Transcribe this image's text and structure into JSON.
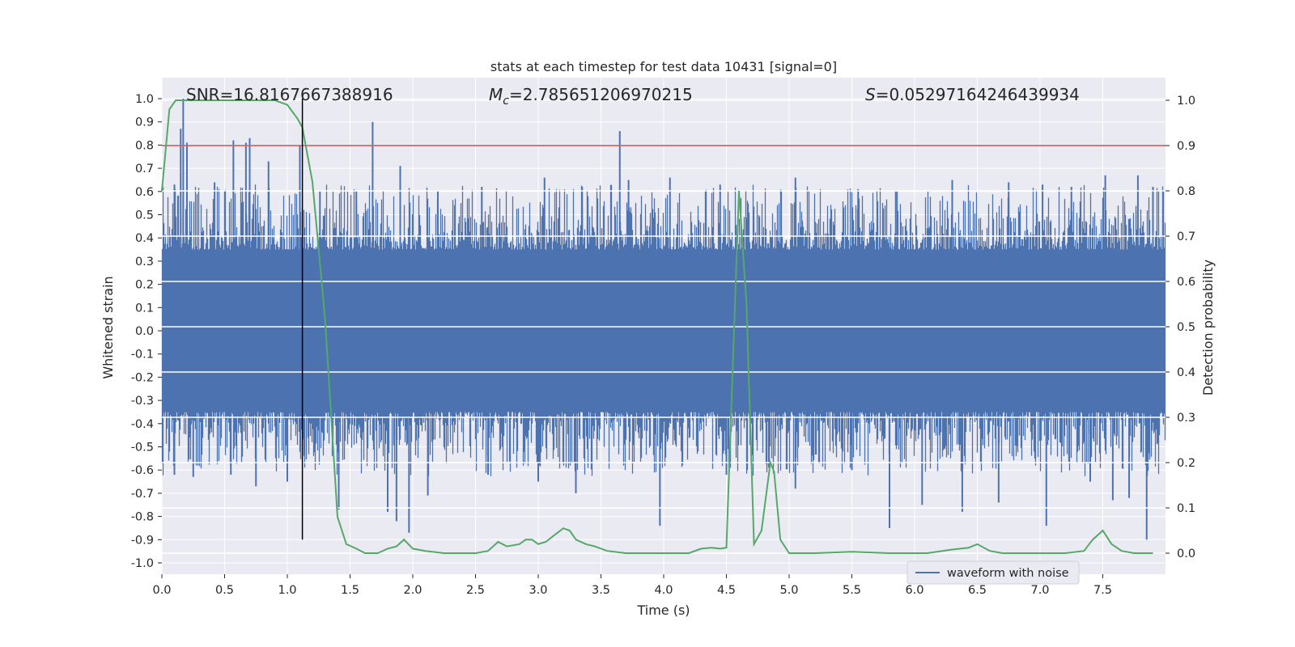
{
  "chart_data": {
    "type": "line",
    "title": "stats at each timestep for test data 10431 [signal=0]",
    "xlabel": "Time (s)",
    "ylabel_left": "Whitened strain",
    "ylabel_right": "Detection probability",
    "xlim": [
      0,
      8
    ],
    "ylim_left": [
      -1.0,
      1.0
    ],
    "ylim_right": [
      -0.05,
      1.05
    ],
    "x_ticks": [
      "0.0",
      "0.5",
      "1.0",
      "1.5",
      "2.0",
      "2.5",
      "3.0",
      "3.5",
      "4.0",
      "4.5",
      "5.0",
      "5.5",
      "6.0",
      "6.5",
      "7.0",
      "7.5"
    ],
    "x_tick_values": [
      0,
      0.5,
      1,
      1.5,
      2,
      2.5,
      3,
      3.5,
      4,
      4.5,
      5,
      5.5,
      6,
      6.5,
      7,
      7.5
    ],
    "y_ticks_left": [
      "-1.0",
      "-0.9",
      "-0.8",
      "-0.7",
      "-0.6",
      "-0.5",
      "-0.4",
      "-0.3",
      "-0.2",
      "-0.1",
      "0.0",
      "0.1",
      "0.2",
      "0.3",
      "0.4",
      "0.5",
      "0.6",
      "0.7",
      "0.8",
      "0.9",
      "1.0"
    ],
    "y_tick_values_left": [
      -1.0,
      -0.9,
      -0.8,
      -0.7,
      -0.6,
      -0.5,
      -0.4,
      -0.3,
      -0.2,
      -0.1,
      0.0,
      0.1,
      0.2,
      0.3,
      0.4,
      0.5,
      0.6,
      0.7,
      0.8,
      0.9,
      1.0
    ],
    "y_ticks_right": [
      "0.0",
      "0.1",
      "0.2",
      "0.3",
      "0.4",
      "0.5",
      "0.6",
      "0.7",
      "0.8",
      "0.9",
      "1.0"
    ],
    "y_tick_values_right": [
      0.0,
      0.1,
      0.2,
      0.3,
      0.4,
      0.5,
      0.6,
      0.7,
      0.8,
      0.9,
      1.0
    ],
    "grid": true,
    "annotations": {
      "snr": "SNR=16.8167667388916",
      "mc_symbol": "M",
      "mc_sub": "c",
      "mc_value": "=2.785651206970215",
      "s_symbol": "S",
      "s_value": "=0.05297164246439934"
    },
    "threshold": {
      "value": 0.9,
      "axis": "right",
      "color": "#c44e52"
    },
    "vertical_marker": {
      "x": 1.12,
      "color": "#000000"
    },
    "legend": {
      "placement": "lower-right",
      "entries": [
        "waveform with noise"
      ]
    },
    "series": [
      {
        "name": "waveform with noise",
        "axis": "left",
        "color": "#4c72b0",
        "note_shape": "dense noise envelope",
        "envelope_abs": 0.35,
        "spikes": [
          {
            "x": 0.17,
            "y": 1.0
          },
          {
            "x": 0.15,
            "y": 0.87
          },
          {
            "x": 0.1,
            "y": 0.63
          },
          {
            "x": 0.2,
            "y": 0.81
          },
          {
            "x": 0.42,
            "y": 0.64
          },
          {
            "x": 0.57,
            "y": 0.82
          },
          {
            "x": 0.7,
            "y": 0.83
          },
          {
            "x": 0.67,
            "y": 0.81
          },
          {
            "x": 0.85,
            "y": 0.73
          },
          {
            "x": 1.1,
            "y": 0.8
          },
          {
            "x": 1.26,
            "y": 0.6
          },
          {
            "x": 1.55,
            "y": 0.6
          },
          {
            "x": 1.68,
            "y": 0.9
          },
          {
            "x": 1.9,
            "y": 0.71
          },
          {
            "x": 2.2,
            "y": 0.6
          },
          {
            "x": 2.55,
            "y": 0.62
          },
          {
            "x": 3.05,
            "y": 0.66
          },
          {
            "x": 3.35,
            "y": 0.62
          },
          {
            "x": 3.65,
            "y": 0.86
          },
          {
            "x": 3.72,
            "y": 0.65
          },
          {
            "x": 4.05,
            "y": 0.66
          },
          {
            "x": 4.45,
            "y": 0.63
          },
          {
            "x": 5.05,
            "y": 0.66
          },
          {
            "x": 5.55,
            "y": 0.61
          },
          {
            "x": 5.85,
            "y": 0.6
          },
          {
            "x": 6.3,
            "y": 0.65
          },
          {
            "x": 6.75,
            "y": 0.64
          },
          {
            "x": 7.02,
            "y": 0.63
          },
          {
            "x": 7.25,
            "y": 0.62
          },
          {
            "x": 7.52,
            "y": 0.67
          },
          {
            "x": 7.78,
            "y": 0.67
          },
          {
            "x": 7.9,
            "y": 0.62
          },
          {
            "x": 0.1,
            "y": -0.62
          },
          {
            "x": 0.25,
            "y": -0.63
          },
          {
            "x": 0.55,
            "y": -0.62
          },
          {
            "x": 0.75,
            "y": -0.67
          },
          {
            "x": 1.0,
            "y": -0.65
          },
          {
            "x": 1.41,
            "y": -0.77
          },
          {
            "x": 1.8,
            "y": -0.78
          },
          {
            "x": 1.87,
            "y": -0.82
          },
          {
            "x": 1.97,
            "y": -0.87
          },
          {
            "x": 2.12,
            "y": -0.71
          },
          {
            "x": 2.6,
            "y": -0.62
          },
          {
            "x": 3.0,
            "y": -0.65
          },
          {
            "x": 3.3,
            "y": -0.7
          },
          {
            "x": 3.97,
            "y": -0.84
          },
          {
            "x": 4.5,
            "y": -0.62
          },
          {
            "x": 5.05,
            "y": -0.68
          },
          {
            "x": 5.5,
            "y": -0.6
          },
          {
            "x": 5.8,
            "y": -0.85
          },
          {
            "x": 6.06,
            "y": -0.75
          },
          {
            "x": 6.38,
            "y": -0.78
          },
          {
            "x": 6.67,
            "y": -0.74
          },
          {
            "x": 7.05,
            "y": -0.84
          },
          {
            "x": 7.4,
            "y": -0.65
          },
          {
            "x": 7.58,
            "y": -0.73
          },
          {
            "x": 7.71,
            "y": -0.72
          },
          {
            "x": 7.85,
            "y": -0.9
          }
        ]
      },
      {
        "name": "",
        "axis": "right",
        "color": "#55a868",
        "x": [
          0.0,
          0.06,
          0.11,
          0.3,
          0.6,
          0.9,
          1.0,
          1.08,
          1.12,
          1.2,
          1.3,
          1.4,
          1.47,
          1.55,
          1.62,
          1.72,
          1.8,
          1.87,
          1.93,
          2.0,
          2.1,
          2.25,
          2.4,
          2.5,
          2.6,
          2.68,
          2.75,
          2.85,
          2.9,
          2.95,
          3.0,
          3.06,
          3.13,
          3.2,
          3.25,
          3.3,
          3.38,
          3.45,
          3.55,
          3.7,
          4.0,
          4.2,
          4.3,
          4.38,
          4.45,
          4.5,
          4.6,
          4.66,
          4.72,
          4.78,
          4.85,
          4.88,
          4.93,
          5.0,
          5.2,
          5.5,
          5.8,
          6.1,
          6.3,
          6.43,
          6.5,
          6.6,
          6.7,
          6.9,
          7.2,
          7.35,
          7.42,
          7.5,
          7.57,
          7.65,
          7.75,
          7.9
        ],
        "y": [
          0.8,
          0.98,
          1.0,
          1.0,
          1.0,
          1.0,
          0.99,
          0.96,
          0.94,
          0.82,
          0.52,
          0.08,
          0.02,
          0.01,
          0.0,
          0.0,
          0.01,
          0.015,
          0.03,
          0.01,
          0.005,
          0.0,
          0.0,
          0.0,
          0.005,
          0.025,
          0.015,
          0.02,
          0.03,
          0.03,
          0.02,
          0.025,
          0.04,
          0.055,
          0.05,
          0.03,
          0.02,
          0.015,
          0.005,
          0.0,
          0.0,
          0.0,
          0.01,
          0.012,
          0.01,
          0.012,
          0.8,
          0.55,
          0.02,
          0.05,
          0.2,
          0.18,
          0.03,
          0.0,
          0.0,
          0.003,
          0.0,
          0.0,
          0.008,
          0.012,
          0.02,
          0.005,
          0.0,
          0.0,
          0.0,
          0.005,
          0.03,
          0.05,
          0.02,
          0.005,
          0.0,
          0.0
        ]
      }
    ]
  }
}
